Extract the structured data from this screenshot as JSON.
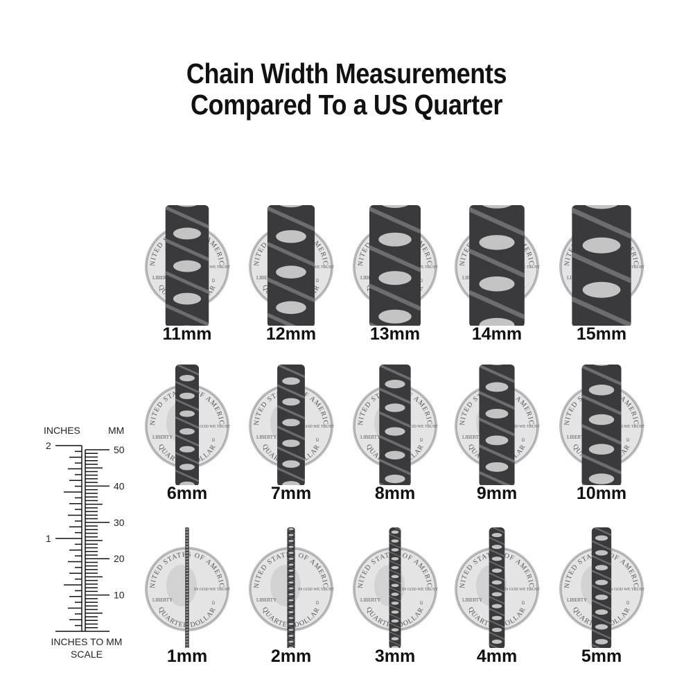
{
  "title": {
    "line1": "Chain Width Measurements",
    "line2": "Compared To a US Quarter"
  },
  "coin": {
    "top_text": "UNITED STATES OF AMERICA",
    "liberty": "LIBERTY",
    "motto": "IN GOD WE TRUST",
    "bottom_text": "QUARTER DOLLAR",
    "mint_mark": "D"
  },
  "rows": [
    {
      "items": [
        {
          "label": "11mm",
          "width_mm": 11
        },
        {
          "label": "12mm",
          "width_mm": 12
        },
        {
          "label": "13mm",
          "width_mm": 13
        },
        {
          "label": "14mm",
          "width_mm": 14
        },
        {
          "label": "15mm",
          "width_mm": 15
        }
      ]
    },
    {
      "items": [
        {
          "label": "6mm",
          "width_mm": 6
        },
        {
          "label": "7mm",
          "width_mm": 7
        },
        {
          "label": "8mm",
          "width_mm": 8
        },
        {
          "label": "9mm",
          "width_mm": 9
        },
        {
          "label": "10mm",
          "width_mm": 10
        }
      ]
    },
    {
      "items": [
        {
          "label": "1mm",
          "width_mm": 1
        },
        {
          "label": "2mm",
          "width_mm": 2
        },
        {
          "label": "3mm",
          "width_mm": 3
        },
        {
          "label": "4mm",
          "width_mm": 4
        },
        {
          "label": "5mm",
          "width_mm": 5
        }
      ]
    }
  ],
  "ruler": {
    "inches_label": "INCHES",
    "mm_label": "MM",
    "inch_ticks": [
      "1",
      "2"
    ],
    "mm_ticks": [
      "10",
      "20",
      "30",
      "40",
      "50"
    ],
    "caption_line1": "INCHES TO MM",
    "caption_line2": "SCALE"
  },
  "colors": {
    "chain": "#3a3a3c",
    "coin": "#e4e4e4",
    "text": "#111111"
  }
}
